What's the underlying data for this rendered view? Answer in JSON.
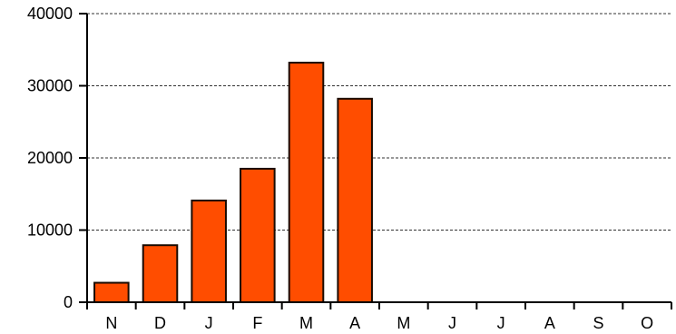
{
  "chart_data": {
    "type": "bar",
    "title": "",
    "xlabel": "",
    "ylabel": "",
    "categories": [
      "N",
      "D",
      "J",
      "F",
      "M",
      "A",
      "M",
      "J",
      "J",
      "A",
      "S",
      "O"
    ],
    "values": [
      2700,
      7900,
      14100,
      18500,
      33200,
      28200,
      0,
      0,
      0,
      0,
      0,
      0
    ],
    "ylim": [
      0,
      40000
    ],
    "yticks": [
      0,
      10000,
      20000,
      30000,
      40000
    ],
    "ytick_labels": [
      "0",
      "10000",
      "20000",
      "30000",
      "40000"
    ],
    "grid": true,
    "bar_color": "#FF4D00",
    "bar_edge_color": "#1a0a00"
  }
}
